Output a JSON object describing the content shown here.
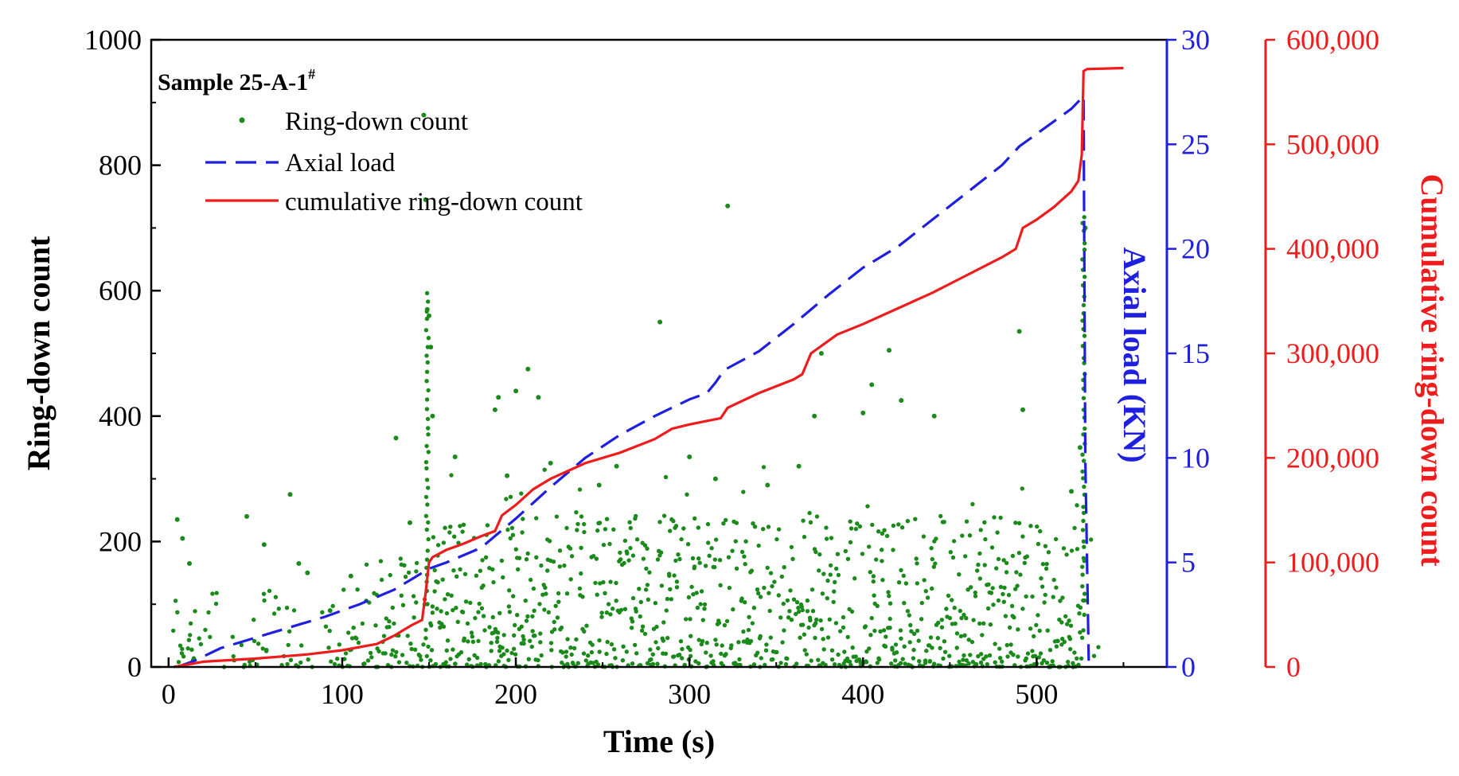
{
  "chart_data": {
    "type": "scatter+line",
    "sample_label": "Sample 25-A-1",
    "sample_superscript": "#",
    "xlabel": "Time (s)",
    "ylabel_left": "Ring-down count",
    "ylabel_right1": "Axial load (KN)",
    "ylabel_right2": "Cumulative ring-down count",
    "xlim": [
      -10,
      575
    ],
    "ylim_left": [
      0,
      1000
    ],
    "ylim_right1": [
      0,
      30
    ],
    "ylim_right2": [
      0,
      600000
    ],
    "x_ticks": [
      0,
      100,
      200,
      300,
      400,
      500
    ],
    "x_tick_labels": [
      "0",
      "100",
      "200",
      "300",
      "400",
      "500"
    ],
    "y_left_ticks": [
      0,
      200,
      400,
      600,
      800,
      1000
    ],
    "y_left_tick_labels": [
      "0",
      "200",
      "400",
      "600",
      "800",
      "1000"
    ],
    "y_right1_ticks": [
      0,
      5,
      10,
      15,
      20,
      25,
      30
    ],
    "y_right1_tick_labels": [
      "0",
      "5",
      "10",
      "15",
      "20",
      "25",
      "30"
    ],
    "y_right2_ticks": [
      0,
      100000,
      200000,
      300000,
      400000,
      500000,
      600000
    ],
    "y_right2_tick_labels": [
      "0",
      "100,000",
      "200,000",
      "300,000",
      "400,000",
      "500,000",
      "600,000"
    ],
    "legend": [
      {
        "label": "Ring-down count",
        "style": "dots",
        "color": "#1a8a1a"
      },
      {
        "label": "Axial load",
        "style": "dashed",
        "color": "#1f1fe0"
      },
      {
        "label": "cumulative ring-down count",
        "style": "solid",
        "color": "#ee1c1c"
      }
    ],
    "colors": {
      "scatter": "#1a8a1a",
      "axial": "#1f1fe0",
      "cumulative": "#ee1c1c",
      "axis": "#000000",
      "right1_axis": "#1f1fe0",
      "right2_axis": "#ee1c1c"
    },
    "axial_load_series": {
      "name": "Axial load",
      "x": [
        5,
        15,
        30,
        50,
        70,
        90,
        110,
        130,
        140,
        150,
        160,
        180,
        190,
        200,
        220,
        240,
        260,
        280,
        300,
        310,
        315,
        320,
        340,
        360,
        380,
        400,
        420,
        440,
        460,
        480,
        490,
        500,
        510,
        520,
        527,
        528,
        530
      ],
      "y": [
        0.0,
        0.3,
        0.9,
        1.4,
        1.9,
        2.4,
        3.0,
        3.7,
        4.2,
        4.7,
        5.0,
        5.7,
        6.4,
        7.1,
        8.6,
        10.0,
        11.1,
        12.0,
        12.8,
        13.1,
        13.6,
        14.2,
        15.1,
        16.4,
        17.8,
        19.1,
        20.1,
        21.4,
        22.7,
        24.0,
        24.9,
        25.5,
        26.1,
        26.7,
        27.3,
        10.0,
        0.3
      ]
    },
    "cumulative_series": {
      "name": "cumulative ring-down count",
      "x": [
        3,
        20,
        50,
        80,
        100,
        120,
        130,
        140,
        146,
        148,
        150,
        152,
        160,
        170,
        180,
        188,
        192,
        200,
        210,
        220,
        240,
        260,
        280,
        290,
        300,
        318,
        322,
        340,
        360,
        365,
        370,
        385,
        400,
        420,
        440,
        460,
        480,
        488,
        492,
        500,
        510,
        520,
        524,
        526,
        527,
        529,
        550
      ],
      "y": [
        0,
        5000,
        8000,
        12000,
        16000,
        22000,
        30000,
        40000,
        45000,
        70000,
        100000,
        105000,
        112000,
        118000,
        125000,
        130000,
        145000,
        155000,
        170000,
        180000,
        195000,
        205000,
        218000,
        228000,
        232000,
        238000,
        248000,
        262000,
        275000,
        280000,
        300000,
        318000,
        328000,
        343000,
        358000,
        375000,
        392000,
        400000,
        420000,
        428000,
        440000,
        455000,
        465000,
        490000,
        570000,
        572000,
        573000
      ]
    },
    "ring_down_scatter": {
      "name": "Ring-down count",
      "outlier_x": [
        5,
        8,
        12,
        45,
        55,
        70,
        75,
        80,
        93,
        105,
        131,
        139,
        147,
        148,
        149,
        150,
        151,
        152,
        165,
        188,
        190,
        195,
        200,
        207,
        213,
        220,
        248,
        258,
        283,
        300,
        315,
        322,
        345,
        363,
        372,
        376,
        400,
        405,
        415,
        422,
        441,
        490,
        492,
        520,
        525,
        528
      ],
      "outlier_y": [
        235,
        205,
        165,
        240,
        195,
        275,
        165,
        150,
        90,
        145,
        365,
        230,
        880,
        745,
        570,
        560,
        510,
        400,
        335,
        410,
        430,
        305,
        440,
        475,
        430,
        325,
        290,
        320,
        550,
        335,
        300,
        735,
        290,
        320,
        400,
        500,
        405,
        450,
        505,
        425,
        400,
        535,
        410,
        280,
        350,
        700
      ]
    }
  }
}
